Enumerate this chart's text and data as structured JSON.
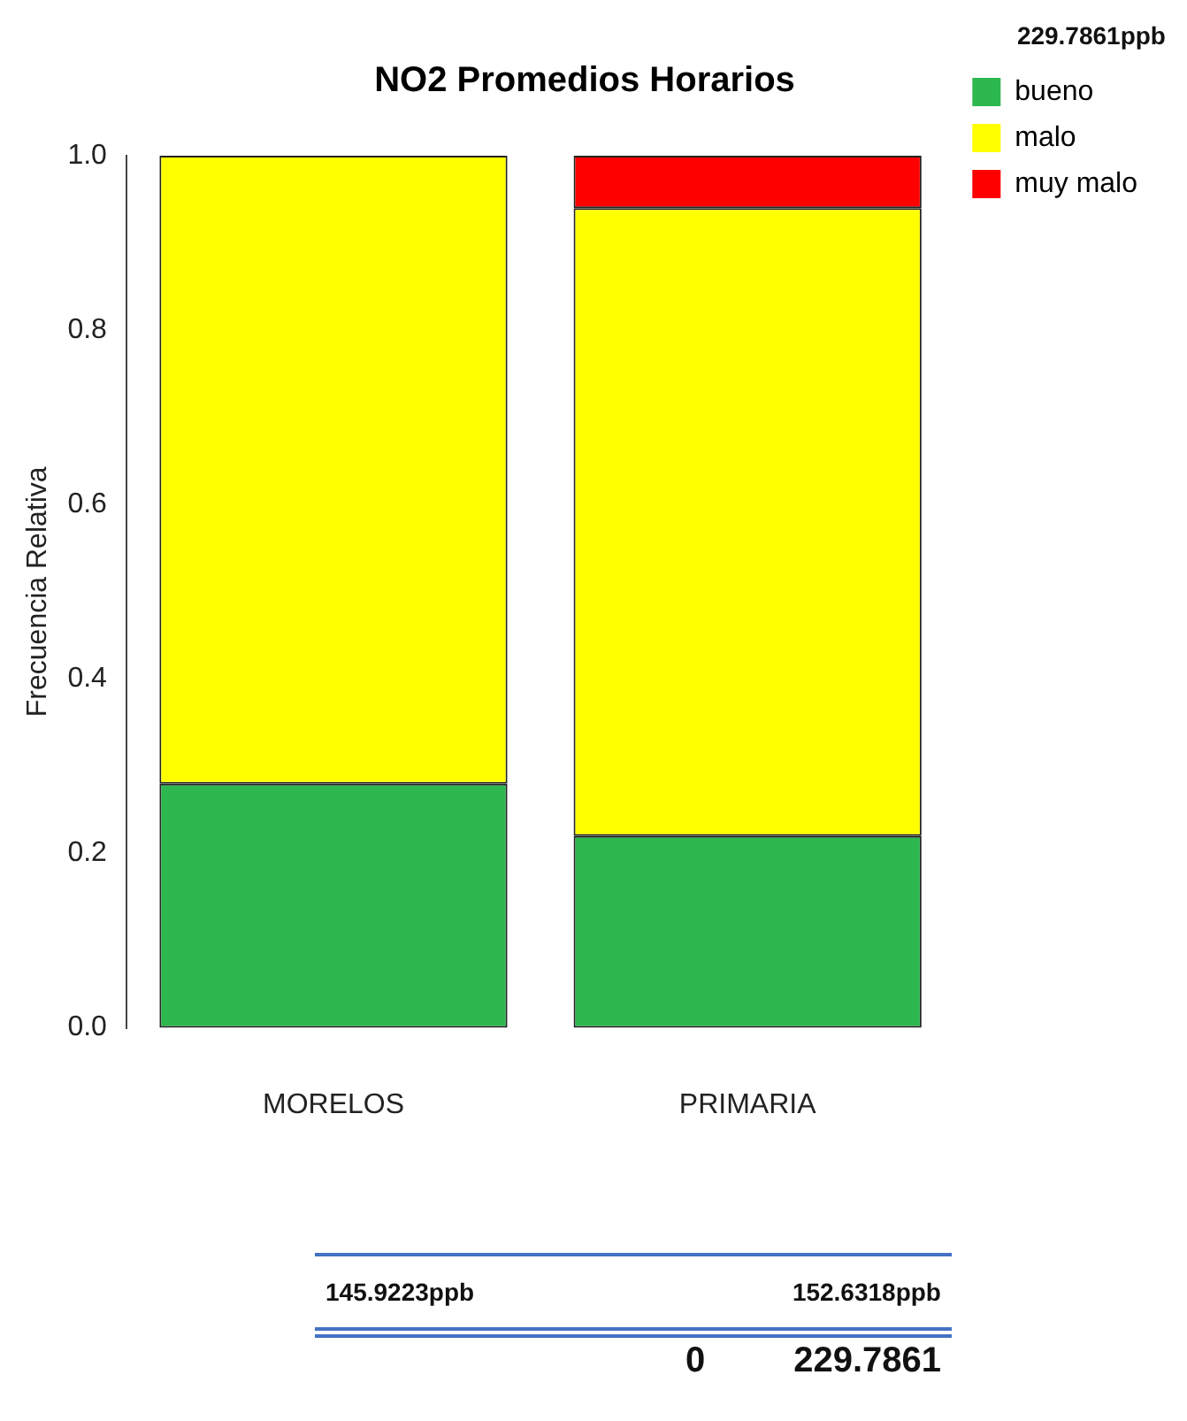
{
  "chart_data": {
    "type": "bar",
    "title": "NO2 Promedios Horarios",
    "ylabel": "Frecuencia Relativa",
    "categories": [
      "MORELOS",
      "PRIMARIA"
    ],
    "series": [
      {
        "name": "bueno",
        "color": "#2db84f",
        "values": [
          0.28,
          0.22
        ]
      },
      {
        "name": "malo",
        "color": "#ffff00",
        "values": [
          0.72,
          0.72
        ]
      },
      {
        "name": "muy malo",
        "color": "#ff0000",
        "values": [
          0,
          0.06
        ]
      }
    ],
    "stacked": true,
    "ylim": [
      0,
      1
    ],
    "yticks": [
      {
        "value": 0,
        "label": "0.0"
      },
      {
        "value": 0.2,
        "label": "0.2"
      },
      {
        "value": 0.4,
        "label": "0.4"
      },
      {
        "value": 0.6,
        "label": "0.6"
      },
      {
        "value": 0.8,
        "label": "0.8"
      },
      {
        "value": 1,
        "label": "1.0"
      }
    ],
    "grid": false,
    "legend": "top right",
    "annotations": [
      "229.7861ppb",
      "145.9223ppb",
      "152.6318ppb",
      "0",
      "229.7861"
    ]
  }
}
